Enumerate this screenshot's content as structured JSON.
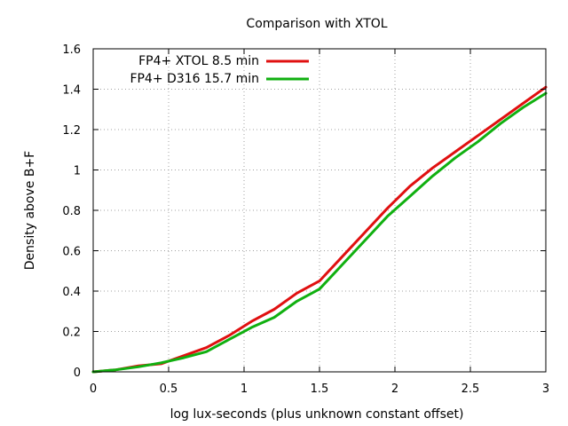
{
  "chart_data": {
    "type": "line",
    "title": "Comparison with XTOL",
    "xlabel": "log lux-seconds (plus unknown constant offset)",
    "ylabel": "Density above B+F",
    "xlim": [
      0,
      3
    ],
    "ylim": [
      0,
      1.6
    ],
    "x_ticks": [
      0,
      0.5,
      1,
      1.5,
      2,
      2.5,
      3
    ],
    "x_tick_labels": [
      "0",
      "0.5",
      "1",
      "1.5",
      "2",
      "2.5",
      "3"
    ],
    "y_ticks": [
      0,
      0.2,
      0.4,
      0.6,
      0.8,
      1.0,
      1.2,
      1.4,
      1.6
    ],
    "y_tick_labels": [
      "0",
      "0.2",
      "0.4",
      "0.6",
      "0.8",
      "1",
      "1.2",
      "1.4",
      "1.6"
    ],
    "grid": true,
    "legend_position": "top-left",
    "series": [
      {
        "name": "FP4+ XTOL 8.5 min",
        "color": "#e01010",
        "x": [
          0,
          0.15,
          0.3,
          0.45,
          0.6,
          0.75,
          0.9,
          1.05,
          1.2,
          1.35,
          1.5,
          1.65,
          1.8,
          1.95,
          2.1,
          2.25,
          2.4,
          2.55,
          2.7,
          2.85,
          3.0
        ],
        "y": [
          0,
          0.01,
          0.03,
          0.04,
          0.08,
          0.12,
          0.18,
          0.25,
          0.31,
          0.39,
          0.45,
          0.57,
          0.69,
          0.81,
          0.92,
          1.01,
          1.09,
          1.17,
          1.25,
          1.33,
          1.41
        ]
      },
      {
        "name": "FP4+ D316 15.7 min",
        "color": "#10b010",
        "x": [
          0,
          0.15,
          0.3,
          0.45,
          0.6,
          0.75,
          0.9,
          1.05,
          1.2,
          1.35,
          1.5,
          1.65,
          1.8,
          1.95,
          2.1,
          2.25,
          2.4,
          2.55,
          2.7,
          2.85,
          3.0
        ],
        "y": [
          0,
          0.01,
          0.025,
          0.045,
          0.07,
          0.1,
          0.16,
          0.22,
          0.27,
          0.35,
          0.41,
          0.53,
          0.65,
          0.77,
          0.87,
          0.97,
          1.06,
          1.14,
          1.23,
          1.31,
          1.38
        ]
      }
    ]
  }
}
